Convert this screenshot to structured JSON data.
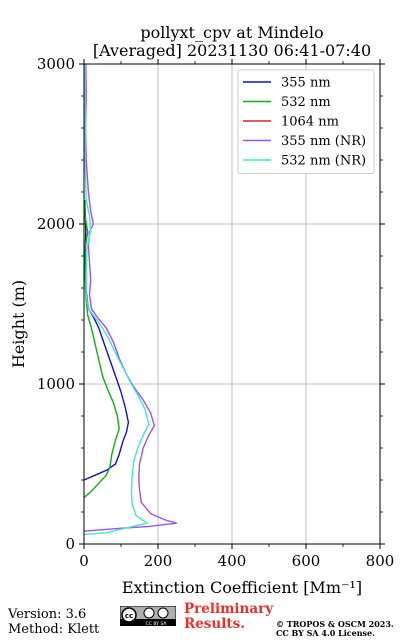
{
  "title": {
    "line1": "pollyxt_cpv at Mindelo",
    "line2": "[Averaged] 20231130 06:41-07:40"
  },
  "footer": {
    "version": "Version: 3.6",
    "method": "Method: Klett",
    "preliminary_line1": "Preliminary",
    "preliminary_line2": "Results.",
    "copyright_line1": "© TROPOS & OSCM 2023.",
    "copyright_line2": "CC BY SA 4.0 License.",
    "badge_text": "CC BY SA"
  },
  "chart_data": {
    "type": "line",
    "xlabel": "Extinction Coefficient [Mm⁻¹]",
    "ylabel": "Height (m)",
    "xlim": [
      0,
      800
    ],
    "ylim": [
      0,
      3000
    ],
    "xticks": [
      "0",
      "200",
      "400",
      "600",
      "800"
    ],
    "yticks": [
      "0",
      "1000",
      "2000",
      "3000"
    ],
    "xtick_values": [
      0,
      200,
      400,
      600,
      800
    ],
    "ytick_values": [
      0,
      1000,
      2000,
      3000
    ],
    "grid": true,
    "legend_position": "top-right",
    "series": [
      {
        "name": "355 nm",
        "color": "#1010d0",
        "points": [
          [
            0,
            400
          ],
          [
            30,
            430
          ],
          [
            60,
            460
          ],
          [
            85,
            500
          ],
          [
            95,
            560
          ],
          [
            105,
            640
          ],
          [
            115,
            700
          ],
          [
            120,
            760
          ],
          [
            112,
            850
          ],
          [
            100,
            950
          ],
          [
            85,
            1050
          ],
          [
            70,
            1150
          ],
          [
            55,
            1250
          ],
          [
            40,
            1350
          ],
          [
            25,
            1420
          ],
          [
            12,
            1470
          ],
          [
            5,
            1600
          ],
          [
            3,
            1800
          ],
          [
            5,
            1950
          ],
          [
            3,
            2100
          ]
        ]
      },
      {
        "name": "532 nm",
        "color": "#10b010",
        "points": [
          [
            0,
            290
          ],
          [
            20,
            330
          ],
          [
            40,
            380
          ],
          [
            60,
            430
          ],
          [
            70,
            480
          ],
          [
            75,
            560
          ],
          [
            85,
            650
          ],
          [
            95,
            720
          ],
          [
            90,
            800
          ],
          [
            80,
            880
          ],
          [
            65,
            960
          ],
          [
            50,
            1050
          ],
          [
            40,
            1150
          ],
          [
            30,
            1250
          ],
          [
            20,
            1350
          ],
          [
            10,
            1430
          ],
          [
            5,
            1550
          ],
          [
            3,
            1700
          ],
          [
            3,
            1850
          ],
          [
            10,
            1950
          ],
          [
            3,
            2050
          ],
          [
            3,
            2150
          ]
        ]
      },
      {
        "name": "1064 nm",
        "color": "#e02020",
        "points": []
      },
      {
        "name": "355 nm (NR)",
        "color": "#a050f0",
        "points": [
          [
            0,
            80
          ],
          [
            80,
            95
          ],
          [
            175,
            110
          ],
          [
            250,
            130
          ],
          [
            220,
            150
          ],
          [
            180,
            190
          ],
          [
            155,
            260
          ],
          [
            150,
            340
          ],
          [
            148,
            420
          ],
          [
            150,
            500
          ],
          [
            160,
            600
          ],
          [
            175,
            680
          ],
          [
            190,
            740
          ],
          [
            180,
            820
          ],
          [
            160,
            900
          ],
          [
            135,
            980
          ],
          [
            115,
            1060
          ],
          [
            95,
            1160
          ],
          [
            80,
            1260
          ],
          [
            60,
            1350
          ],
          [
            35,
            1420
          ],
          [
            20,
            1470
          ],
          [
            15,
            1560
          ],
          [
            18,
            1650
          ],
          [
            15,
            1760
          ],
          [
            12,
            1860
          ],
          [
            15,
            1950
          ],
          [
            25,
            2000
          ],
          [
            18,
            2080
          ],
          [
            12,
            2200
          ],
          [
            6,
            2400
          ],
          [
            4,
            2600
          ],
          [
            6,
            2800
          ],
          [
            5,
            3000
          ]
        ]
      },
      {
        "name": "532 nm (NR)",
        "color": "#40e8d0",
        "points": [
          [
            0,
            60
          ],
          [
            60,
            70
          ],
          [
            150,
            120
          ],
          [
            170,
            130
          ],
          [
            140,
            180
          ],
          [
            130,
            250
          ],
          [
            128,
            330
          ],
          [
            130,
            420
          ],
          [
            135,
            520
          ],
          [
            145,
            600
          ],
          [
            160,
            680
          ],
          [
            175,
            750
          ],
          [
            165,
            840
          ],
          [
            148,
            920
          ],
          [
            128,
            1000
          ],
          [
            110,
            1080
          ],
          [
            88,
            1180
          ],
          [
            70,
            1270
          ],
          [
            50,
            1350
          ],
          [
            28,
            1420
          ],
          [
            12,
            1470
          ],
          [
            6,
            1560
          ],
          [
            6,
            1700
          ],
          [
            8,
            1850
          ],
          [
            18,
            1960
          ],
          [
            15,
            2050
          ],
          [
            6,
            2150
          ],
          [
            3,
            2400
          ],
          [
            3,
            2700
          ],
          [
            3,
            3000
          ]
        ]
      }
    ]
  }
}
